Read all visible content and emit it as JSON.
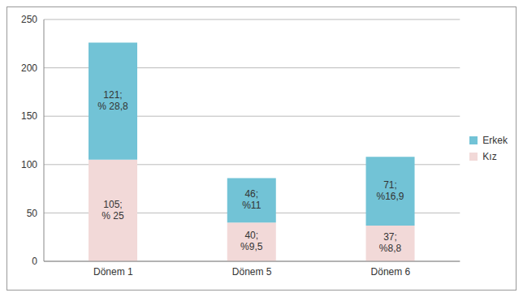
{
  "chart_data": {
    "type": "bar",
    "categories": [
      "Dönem 1",
      "Dönem 5",
      "Dönem 6"
    ],
    "series": [
      {
        "name": "Kız",
        "color": "#f2d9d8",
        "values": [
          105,
          40,
          37
        ],
        "value_labels": [
          "105; % 25",
          "40; %9,5",
          "37; %8,8"
        ]
      },
      {
        "name": "Erkek",
        "color": "#72c3d6",
        "values": [
          121,
          46,
          71
        ],
        "value_labels": [
          "121; % 28,8",
          "46; %11",
          "71; %16,9"
        ]
      }
    ],
    "ylim": [
      0,
      250
    ],
    "yticks": [
      0,
      50,
      100,
      150,
      200,
      250
    ],
    "grid": true,
    "stacked": true,
    "data_labels": true,
    "legend": "right"
  }
}
